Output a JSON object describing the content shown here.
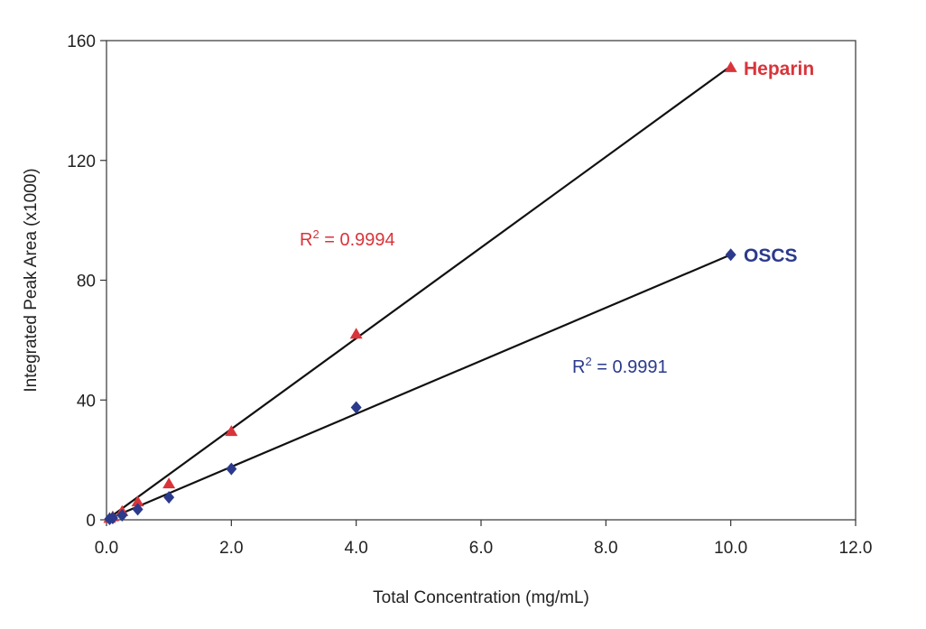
{
  "chart_data": {
    "type": "scatter",
    "xlabel": "Total Concentration (mg/mL)",
    "ylabel": "Integrated Peak Area (x1000)",
    "xlim": [
      0,
      12
    ],
    "ylim": [
      0,
      160
    ],
    "x_ticks": [
      "0.0",
      "2.0",
      "4.0",
      "6.0",
      "8.0",
      "10.0",
      "12.0"
    ],
    "y_ticks": [
      "0",
      "40",
      "80",
      "120",
      "160"
    ],
    "grid": false,
    "series": [
      {
        "name": "Heparin",
        "color": "#d9343a",
        "marker": "triangle",
        "x": [
          0.05,
          0.1,
          0.25,
          0.5,
          1.0,
          2.0,
          4.0,
          10.0
        ],
        "y": [
          0.5,
          1.0,
          2.8,
          6.0,
          12.0,
          29.5,
          62.0,
          151.0
        ],
        "fit": {
          "x": [
            0.0,
            10.0
          ],
          "y": [
            0.0,
            151.5
          ]
        },
        "r2": {
          "prefix": "R",
          "sup": "2",
          "value": " = 0.9994"
        }
      },
      {
        "name": "OSCS",
        "color": "#2b3a8c",
        "marker": "diamond",
        "x": [
          0.05,
          0.1,
          0.25,
          0.5,
          1.0,
          2.0,
          4.0,
          10.0
        ],
        "y": [
          0.3,
          0.6,
          1.5,
          3.5,
          7.5,
          17.0,
          37.5,
          88.5
        ],
        "fit": {
          "x": [
            0.0,
            10.0
          ],
          "y": [
            0.0,
            88.5
          ]
        },
        "r2": {
          "prefix": "R",
          "sup": "2",
          "value": " = 0.9991"
        }
      }
    ]
  }
}
